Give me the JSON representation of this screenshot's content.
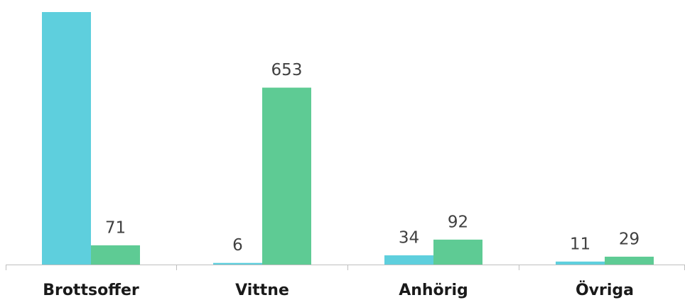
{
  "chart_data": {
    "type": "bar",
    "categories": [
      "Brottsoffer",
      "Vittne",
      "Anhörig",
      "Övriga"
    ],
    "series": [
      {
        "color": "#5ecfdd",
        "values": [
          932,
          6,
          34,
          11
        ]
      },
      {
        "color": "#5ecb94",
        "values": [
          71,
          653,
          92,
          29
        ]
      }
    ]
  }
}
